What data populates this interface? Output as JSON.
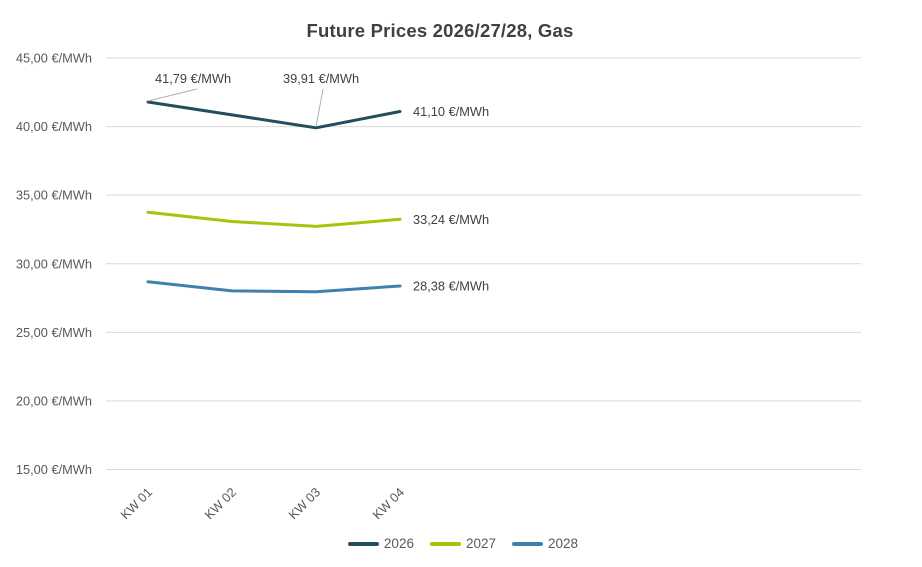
{
  "page": {
    "background": "#FFFFFF"
  },
  "chart_data": {
    "type": "line",
    "title": "Future Prices 2026/27/28, Gas",
    "categories": [
      "KW 01",
      "KW 02",
      "KW 03",
      "KW 04"
    ],
    "series": [
      {
        "name": "2026",
        "color": "#1F4E5F",
        "values": [
          41.79,
          40.85,
          39.91,
          41.1
        ],
        "end_label": "41,10 €/MWh"
      },
      {
        "name": "2027",
        "color": "#A2C510",
        "values": [
          33.75,
          33.08,
          32.72,
          33.24
        ],
        "end_label": "33,24 €/MWh"
      },
      {
        "name": "2028",
        "color": "#4080AD",
        "values": [
          28.69,
          28.02,
          27.96,
          28.38
        ],
        "end_label": "28,38 €/MWh"
      }
    ],
    "point_labels": [
      {
        "series": "2026",
        "category": "KW 01",
        "value": 41.79,
        "text": "41,79 €/MWh"
      },
      {
        "series": "2026",
        "category": "KW 03",
        "value": 39.91,
        "text": "39,91 €/MWh"
      }
    ],
    "y_axis": {
      "min": 15,
      "max": 45,
      "step": 5,
      "unit": "€/MWh",
      "tick_labels": [
        "45,00 €/MWh",
        "40,00 €/MWh",
        "35,00 €/MWh",
        "30,00 €/MWh",
        "25,00 €/MWh",
        "20,00 €/MWh",
        "15,00 €/MWh"
      ]
    },
    "x_axis": {
      "tick_labels": [
        "KW 01",
        "KW 02",
        "KW 03",
        "KW 04"
      ],
      "label_rotation_deg": -45
    },
    "legend": {
      "position": "bottom",
      "entries": [
        "2026",
        "2027",
        "2028"
      ]
    },
    "grid": true,
    "colors": {
      "grid": "#D9D9D9",
      "title_text": "#404040",
      "axis_text": "#595959",
      "data_label_text": "#404040",
      "leader_line": "#AFAFAF",
      "background": "#FFFFFF"
    }
  }
}
